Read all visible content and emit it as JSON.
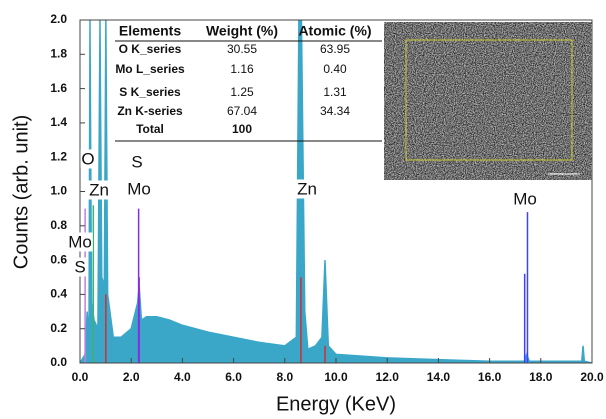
{
  "chart_data": {
    "type": "area",
    "x_label": "Energy (KeV)",
    "y_label": "Counts (arb. unit)",
    "xlim": [
      0,
      20
    ],
    "ylim": [
      0,
      2
    ],
    "xticks": [
      {
        "value": 0,
        "label": "0.0"
      },
      {
        "value": 2,
        "label": "2.0"
      },
      {
        "value": 4,
        "label": "4.0"
      },
      {
        "value": 6,
        "label": "6.0"
      },
      {
        "value": 8,
        "label": "8.0"
      },
      {
        "value": 10,
        "label": "10.0"
      },
      {
        "value": 12,
        "label": "12.0"
      },
      {
        "value": 14,
        "label": "14.0"
      },
      {
        "value": 16,
        "label": "16.0"
      },
      {
        "value": 18,
        "label": "18.0"
      },
      {
        "value": 20,
        "label": "20.0"
      }
    ],
    "yticks": [
      {
        "value": 0,
        "label": "0.0"
      },
      {
        "value": 0.2,
        "label": "0.2"
      },
      {
        "value": 0.4,
        "label": "0.4"
      },
      {
        "value": 0.6,
        "label": "0.6"
      },
      {
        "value": 0.8,
        "label": "0.8"
      },
      {
        "value": 1,
        "label": "1.0"
      },
      {
        "value": 1.2,
        "label": "1.2"
      },
      {
        "value": 1.4,
        "label": "1.4"
      },
      {
        "value": 1.6,
        "label": "1.6"
      },
      {
        "value": 1.8,
        "label": "1.8"
      },
      {
        "value": 2,
        "label": "2.0"
      }
    ],
    "series": [
      {
        "color": "#3aa7c9",
        "x": [
          0.0,
          0.2,
          0.28,
          0.35,
          0.39,
          0.45,
          0.55,
          0.7,
          0.78,
          0.85,
          0.95,
          1.01,
          1.08,
          1.3,
          1.6,
          2.0,
          2.25,
          2.31,
          2.4,
          2.6,
          3.0,
          3.5,
          4.0,
          5.0,
          6.0,
          7.0,
          8.0,
          8.45,
          8.55,
          8.65,
          8.78,
          8.9,
          9.2,
          9.45,
          9.57,
          9.7,
          10.0,
          12.0,
          14.0,
          16.0,
          17.35,
          17.45,
          17.55,
          18.0,
          19.6,
          19.65,
          19.7,
          20.0
        ],
        "values": [
          0.0,
          0.05,
          0.3,
          0.1,
          2.0,
          0.35,
          0.25,
          0.2,
          2.0,
          0.5,
          0.45,
          2.0,
          0.4,
          0.15,
          0.15,
          0.2,
          0.35,
          0.45,
          0.25,
          0.27,
          0.27,
          0.25,
          0.22,
          0.18,
          0.15,
          0.12,
          0.1,
          0.15,
          2.0,
          2.0,
          0.3,
          0.08,
          0.1,
          0.15,
          0.6,
          0.1,
          0.05,
          0.03,
          0.02,
          0.01,
          0.01,
          0.05,
          0.01,
          0.01,
          0.01,
          0.1,
          0.01,
          0.0
        ]
      }
    ],
    "markers": [
      {
        "x": 0.52,
        "height": 0.92,
        "color": "#3cb371"
      },
      {
        "x": 0.2,
        "height": 0.9,
        "color": "#c080e0"
      },
      {
        "x": 1.01,
        "height": 0.4,
        "color": "#d03030"
      },
      {
        "x": 2.29,
        "height": 0.9,
        "color": "#8a2be2"
      },
      {
        "x": 2.31,
        "height": 0.5,
        "color": "#8a2be2"
      },
      {
        "x": 8.63,
        "height": 0.5,
        "color": "#d03030"
      },
      {
        "x": 9.57,
        "height": 0.1,
        "color": "#d03030"
      },
      {
        "x": 17.37,
        "height": 0.52,
        "color": "#4040ff"
      },
      {
        "x": 17.48,
        "height": 0.88,
        "color": "#4040ff"
      }
    ],
    "annotations": [
      "O",
      "Zn",
      "S",
      "Mo",
      "Mo",
      "S",
      "Zn",
      "Mo"
    ]
  },
  "table": {
    "header": [
      "Elements",
      "Weight (%)",
      "Atomic (%)"
    ],
    "rows": [
      [
        "O K_series",
        "30.55",
        "63.95"
      ],
      [
        "Mo L_series",
        "1.16",
        "0.40"
      ],
      [
        "S K_series",
        "1.25",
        "1.31"
      ],
      [
        "Zn K-series",
        "67.04",
        "34.34"
      ],
      [
        "Total",
        "100"
      ]
    ]
  }
}
